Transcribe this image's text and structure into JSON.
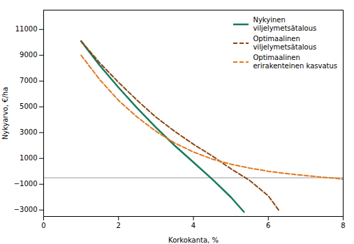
{
  "chart_data": {
    "type": "line",
    "xlabel": "Korkokanta, %",
    "ylabel": "Nykyarvo, €/ha",
    "xlim": [
      0,
      8
    ],
    "xticks": [
      0,
      2,
      4,
      6,
      8
    ],
    "ylim": [
      -3500,
      12500
    ],
    "yticks": [
      {
        "value": -3000,
        "label": "−3000"
      },
      {
        "value": -1000,
        "label": "−1000"
      },
      1000,
      3000,
      5000,
      7000,
      9000,
      11000
    ],
    "grid": false,
    "legend": "upper right",
    "reference_lines": [
      {
        "y": -500,
        "color": "#999999"
      }
    ],
    "series": [
      {
        "name": "Nykyinen\nviljelymetsätalous",
        "color": "#1a7a5e",
        "line_style": "solid",
        "x": [
          1.0,
          1.5,
          2.0,
          2.5,
          3.0,
          3.5,
          4.0,
          4.5,
          5.0,
          5.35
        ],
        "values": [
          10100,
          8200,
          6500,
          4900,
          3400,
          2000,
          700,
          -600,
          -2000,
          -3150
        ]
      },
      {
        "name": "Optimaalinen\nviljelymetsätalous",
        "color": "#8B4513",
        "line_style": "dashed",
        "x": [
          1.0,
          1.5,
          2.0,
          2.5,
          3.0,
          3.5,
          4.0,
          4.5,
          5.0,
          5.5,
          6.0,
          6.3
        ],
        "values": [
          10100,
          8400,
          6900,
          5500,
          4200,
          3100,
          2100,
          1200,
          200,
          -700,
          -1900,
          -3100
        ]
      },
      {
        "name": "Optimaalinen\nerirakenteinen kasvatus",
        "color": "#e07820",
        "line_style": "dashed",
        "x": [
          1.0,
          1.5,
          2.0,
          2.5,
          3.0,
          3.5,
          4.0,
          4.5,
          5.0,
          5.5,
          6.0,
          6.5,
          7.0,
          7.5,
          8.0
        ],
        "values": [
          9000,
          7100,
          5500,
          4200,
          3100,
          2200,
          1500,
          950,
          550,
          250,
          0,
          -180,
          -330,
          -470,
          -600
        ]
      }
    ]
  }
}
